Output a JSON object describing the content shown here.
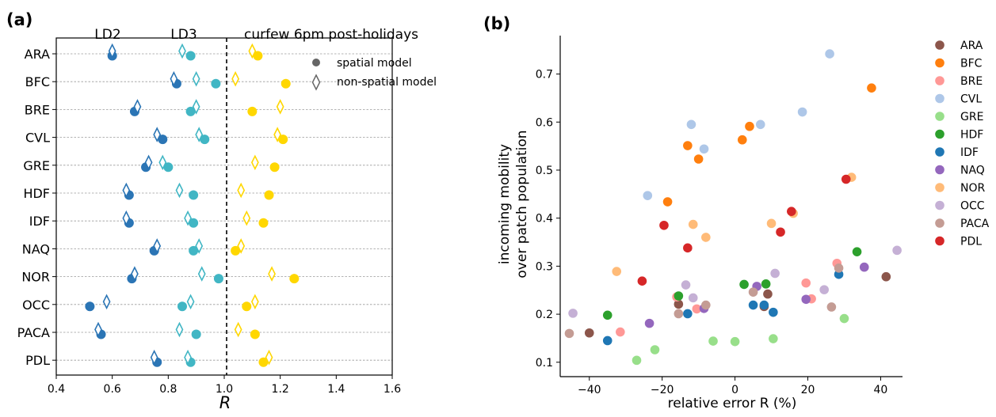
{
  "panel_a": {
    "label": "(a)",
    "xlabel": "R",
    "period_labels": [
      "LD2",
      "LD3",
      "curfew 6pm post-holidays"
    ],
    "legend": {
      "spatial_label": "spatial model",
      "nonspatial_label": "non-spatial model"
    },
    "colors": {
      "LD2": "#2b75b5",
      "LD3": "#41b6c4",
      "curfew": "#ffd700"
    }
  },
  "panel_b": {
    "label": "(b)",
    "xlabel": "relative error R (%)",
    "ylabel_line1": "incoming mobility",
    "ylabel_line2": "over patch population"
  },
  "chart_data": [
    {
      "type": "scatter",
      "panel": "(a)",
      "xlabel": "R",
      "xlim": [
        0.4,
        1.6
      ],
      "xticks": [
        "0.4",
        "0.6",
        "0.8",
        "1.0",
        "1.2",
        "1.4",
        "1.6"
      ],
      "vertical_reference_line": 1.0,
      "regions": [
        "ARA",
        "BFC",
        "BRE",
        "CVL",
        "GRE",
        "HDF",
        "IDF",
        "NAQ",
        "NOR",
        "OCC",
        "PACA",
        "PDL"
      ],
      "grid": "horizontal dashed",
      "legend": {
        "entries": [
          "spatial model",
          "non-spatial model"
        ],
        "position": "top-right"
      },
      "series": [
        {
          "period": "LD2",
          "model": "spatial model",
          "marker": "circle",
          "values": [
            0.6,
            0.83,
            0.68,
            0.78,
            0.72,
            0.66,
            0.66,
            0.75,
            0.67,
            0.52,
            0.56,
            0.76
          ]
        },
        {
          "period": "LD2",
          "model": "non-spatial model",
          "marker": "diamond",
          "values": [
            0.6,
            0.82,
            0.69,
            0.76,
            0.73,
            0.65,
            0.65,
            0.76,
            0.68,
            0.58,
            0.55,
            0.75
          ]
        },
        {
          "period": "LD3",
          "model": "spatial model",
          "marker": "circle",
          "values": [
            0.88,
            0.97,
            0.88,
            0.93,
            0.8,
            0.89,
            0.89,
            0.89,
            0.98,
            0.85,
            0.9,
            0.88
          ]
        },
        {
          "period": "LD3",
          "model": "non-spatial model",
          "marker": "diamond",
          "values": [
            0.85,
            0.9,
            0.9,
            0.91,
            0.78,
            0.84,
            0.87,
            0.91,
            0.92,
            0.88,
            0.84,
            0.87
          ]
        },
        {
          "period": "curfew 6pm post-holidays",
          "model": "spatial model",
          "marker": "circle",
          "values": [
            1.12,
            1.22,
            1.1,
            1.21,
            1.18,
            1.16,
            1.14,
            1.04,
            1.25,
            1.08,
            1.11,
            1.14
          ]
        },
        {
          "period": "curfew 6pm post-holidays",
          "model": "non-spatial model",
          "marker": "diamond",
          "values": [
            1.1,
            1.04,
            1.2,
            1.19,
            1.11,
            1.06,
            1.08,
            1.06,
            1.17,
            1.11,
            1.05,
            1.16
          ]
        }
      ]
    },
    {
      "type": "scatter",
      "panel": "(b)",
      "xlabel": "relative error R (%)",
      "ylabel": "incoming mobility over patch population",
      "xlim": [
        -48,
        46
      ],
      "ylim": [
        0.07,
        0.78
      ],
      "xticks": [
        -40,
        -20,
        0,
        20,
        40
      ],
      "yticks": [
        0.1,
        0.2,
        0.3,
        0.4,
        0.5,
        0.6,
        0.7
      ],
      "legend": {
        "position": "right"
      },
      "series": [
        {
          "name": "ARA",
          "color": "#8c564b",
          "points": [
            [
              -40,
              0.161
            ],
            [
              -15.5,
              0.221
            ],
            [
              8,
              0.216
            ],
            [
              9,
              0.242
            ],
            [
              41.5,
              0.278
            ]
          ]
        },
        {
          "name": "BFC",
          "color": "#ff7f0e",
          "points": [
            [
              -18.5,
              0.434
            ],
            [
              -13,
              0.551
            ],
            [
              -10,
              0.523
            ],
            [
              2,
              0.563
            ],
            [
              4,
              0.591
            ],
            [
              37.5,
              0.671
            ]
          ]
        },
        {
          "name": "BRE",
          "color": "#ff9896",
          "points": [
            [
              -31.5,
              0.163
            ],
            [
              -16,
              0.236
            ],
            [
              -10.5,
              0.211
            ],
            [
              19.5,
              0.265
            ],
            [
              21,
              0.232
            ],
            [
              28,
              0.306
            ]
          ]
        },
        {
          "name": "CVL",
          "color": "#aec7e8",
          "points": [
            [
              -24,
              0.447
            ],
            [
              -12,
              0.595
            ],
            [
              -8.5,
              0.544
            ],
            [
              7,
              0.595
            ],
            [
              18.5,
              0.621
            ],
            [
              26,
              0.742
            ]
          ]
        },
        {
          "name": "GRE",
          "color": "#98df8a",
          "points": [
            [
              -27,
              0.104
            ],
            [
              -22,
              0.126
            ],
            [
              -6,
              0.144
            ],
            [
              0,
              0.143
            ],
            [
              10.5,
              0.149
            ],
            [
              30,
              0.191
            ]
          ]
        },
        {
          "name": "HDF",
          "color": "#2ca02c",
          "points": [
            [
              -35,
              0.198
            ],
            [
              -15.5,
              0.238
            ],
            [
              2.5,
              0.262
            ],
            [
              8.5,
              0.263
            ],
            [
              33.5,
              0.33
            ]
          ]
        },
        {
          "name": "IDF",
          "color": "#1f77b4",
          "points": [
            [
              -35,
              0.145
            ],
            [
              -13,
              0.201
            ],
            [
              5,
              0.219
            ],
            [
              8,
              0.219
            ],
            [
              10.5,
              0.204
            ],
            [
              28.5,
              0.283
            ]
          ]
        },
        {
          "name": "NAQ",
          "color": "#9467bd",
          "points": [
            [
              -23.5,
              0.181
            ],
            [
              -8.5,
              0.212
            ],
            [
              6,
              0.258
            ],
            [
              19.5,
              0.231
            ],
            [
              35.5,
              0.298
            ]
          ]
        },
        {
          "name": "NOR",
          "color": "#ffbb78",
          "points": [
            [
              -32.5,
              0.289
            ],
            [
              -11.5,
              0.387
            ],
            [
              -8,
              0.36
            ],
            [
              10,
              0.389
            ],
            [
              16,
              0.41
            ],
            [
              32,
              0.485
            ]
          ]
        },
        {
          "name": "OCC",
          "color": "#c5b0d5",
          "points": [
            [
              -44.5,
              0.202
            ],
            [
              -13.5,
              0.261
            ],
            [
              -11.5,
              0.234
            ],
            [
              11,
              0.285
            ],
            [
              24.5,
              0.251
            ],
            [
              44.5,
              0.333
            ]
          ]
        },
        {
          "name": "PACA",
          "color": "#c49c94",
          "points": [
            [
              -45.5,
              0.16
            ],
            [
              -15.5,
              0.201
            ],
            [
              -8,
              0.219
            ],
            [
              5,
              0.246
            ],
            [
              26.5,
              0.215
            ],
            [
              28.5,
              0.296
            ]
          ]
        },
        {
          "name": "PDL",
          "color": "#d62728",
          "points": [
            [
              -25.5,
              0.269
            ],
            [
              -19.5,
              0.385
            ],
            [
              -13,
              0.338
            ],
            [
              12.5,
              0.371
            ],
            [
              15.5,
              0.414
            ],
            [
              30.5,
              0.481
            ]
          ]
        }
      ]
    }
  ]
}
